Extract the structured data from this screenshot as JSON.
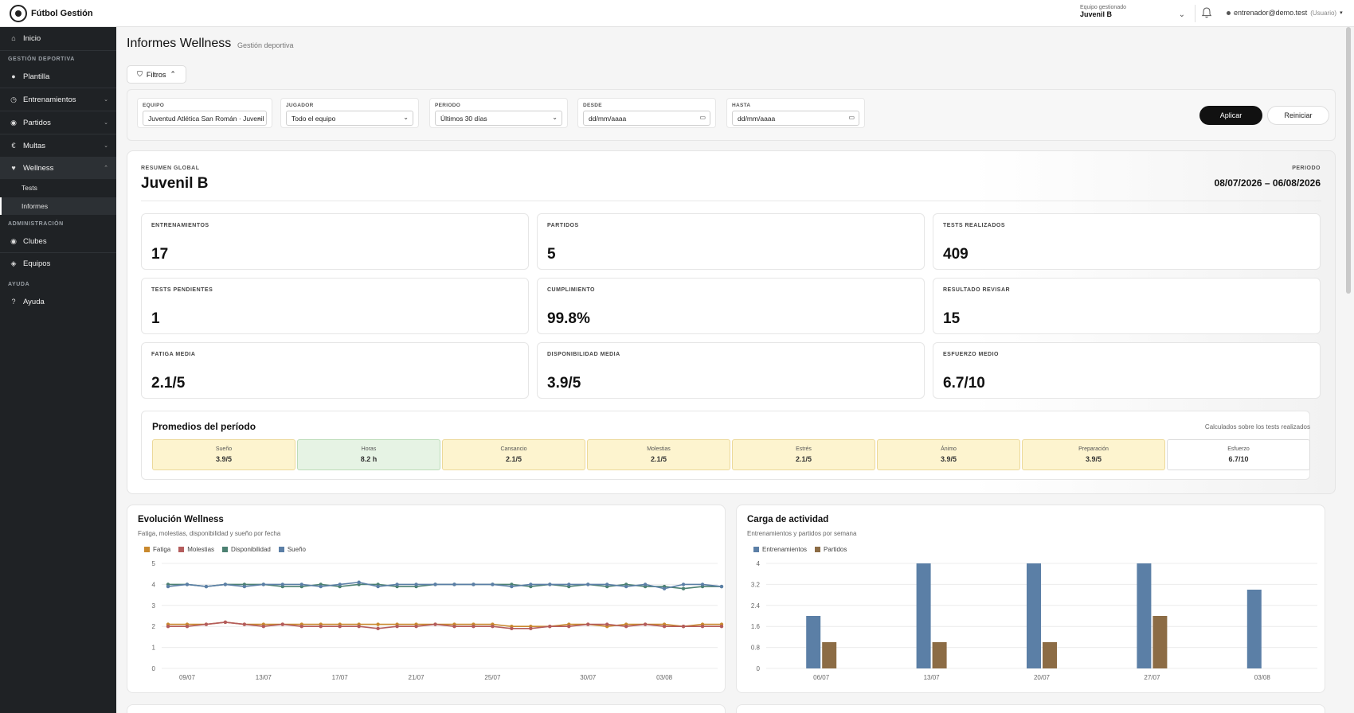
{
  "brand": {
    "name": "Fútbol Gestión"
  },
  "topbar": {
    "team_label": "Equipo gestionado",
    "team_value": "Juvenil B",
    "user_email": "entrenador@demo.test",
    "user_role": "(Usuario)"
  },
  "sidebar": {
    "home": "Inicio",
    "section_sport": "GESTIÓN DEPORTIVA",
    "plantilla": "Plantilla",
    "entrenamientos": "Entrenamientos",
    "partidos": "Partidos",
    "multas": "Multas",
    "wellness": "Wellness",
    "tests": "Tests",
    "informes": "Informes",
    "section_admin": "ADMINISTRACIÓN",
    "clubes": "Clubes",
    "equipos": "Equipos",
    "section_help": "AYUDA",
    "ayuda": "Ayuda"
  },
  "page": {
    "title": "Informes Wellness",
    "subtitle": "Gestión deportiva",
    "filters_button": "Filtros"
  },
  "filters": {
    "equipo_label": "EQUIPO",
    "equipo_value": "Juventud Atlética San Román · Juvenil B",
    "jugador_label": "JUGADOR",
    "jugador_value": "Todo el equipo",
    "periodo_label": "PERIODO",
    "periodo_value": "Últimos 30 días",
    "desde_label": "DESDE",
    "desde_placeholder": "dd/mm/aaaa",
    "hasta_label": "HASTA",
    "hasta_placeholder": "dd/mm/aaaa",
    "apply": "Aplicar",
    "reset": "Reiniciar"
  },
  "summary": {
    "label": "RESUMEN GLOBAL",
    "team": "Juvenil B",
    "period_label": "PERIODO",
    "period_value": "08/07/2026 – 06/08/2026",
    "kpis": [
      {
        "label": "ENTRENAMIENTOS",
        "value": "17"
      },
      {
        "label": "PARTIDOS",
        "value": "5"
      },
      {
        "label": "TESTS REALIZADOS",
        "value": "409"
      },
      {
        "label": "TESTS PENDIENTES",
        "value": "1"
      },
      {
        "label": "CUMPLIMIENTO",
        "value": "99.8%"
      },
      {
        "label": "RESULTADO REVISAR",
        "value": "15"
      },
      {
        "label": "FATIGA MEDIA",
        "value": "2.1/5"
      },
      {
        "label": "DISPONIBILIDAD MEDIA",
        "value": "3.9/5"
      },
      {
        "label": "ESFUERZO MEDIO",
        "value": "6.7/10"
      }
    ]
  },
  "averages": {
    "title": "Promedios del período",
    "note": "Calculados sobre los tests realizados",
    "items": [
      {
        "name": "Sueño",
        "value": "3.9/5",
        "tone": "yellow"
      },
      {
        "name": "Horas",
        "value": "8.2 h",
        "tone": "green"
      },
      {
        "name": "Cansancio",
        "value": "2.1/5",
        "tone": "yellow"
      },
      {
        "name": "Molestias",
        "value": "2.1/5",
        "tone": "yellow"
      },
      {
        "name": "Estrés",
        "value": "2.1/5",
        "tone": "yellow"
      },
      {
        "name": "Ánimo",
        "value": "3.9/5",
        "tone": "yellow"
      },
      {
        "name": "Preparación",
        "value": "3.9/5",
        "tone": "yellow"
      },
      {
        "name": "Esfuerzo",
        "value": "6.7/10",
        "tone": "white"
      }
    ]
  },
  "chart_data": [
    {
      "type": "line",
      "title": "Evolución Wellness",
      "subtitle": "Fatiga, molestias, disponibilidad y sueño por fecha",
      "ylim": [
        0,
        5
      ],
      "yticks": [
        0,
        1,
        2,
        3,
        4,
        5
      ],
      "x": [
        "08/07",
        "09/07",
        "10/07",
        "11/07",
        "12/07",
        "13/07",
        "14/07",
        "15/07",
        "16/07",
        "17/07",
        "18/07",
        "19/07",
        "20/07",
        "21/07",
        "22/07",
        "23/07",
        "24/07",
        "25/07",
        "26/07",
        "27/07",
        "28/07",
        "29/07",
        "30/07",
        "31/07",
        "01/08",
        "02/08",
        "03/08",
        "04/08",
        "05/08",
        "06/08"
      ],
      "xtick_labels": [
        "09/07",
        "13/07",
        "17/07",
        "21/07",
        "25/07",
        "30/07",
        "03/08"
      ],
      "series": [
        {
          "name": "Fatiga",
          "color": "#c9892e",
          "values": [
            2.1,
            2.1,
            2.1,
            2.2,
            2.1,
            2.1,
            2.1,
            2.1,
            2.1,
            2.1,
            2.1,
            2.1,
            2.1,
            2.1,
            2.1,
            2.1,
            2.1,
            2.1,
            2.0,
            2.0,
            2.0,
            2.1,
            2.1,
            2.0,
            2.1,
            2.1,
            2.1,
            2.0,
            2.1,
            2.1
          ]
        },
        {
          "name": "Molestias",
          "color": "#b45c5c",
          "values": [
            2.0,
            2.0,
            2.1,
            2.2,
            2.1,
            2.0,
            2.1,
            2.0,
            2.0,
            2.0,
            2.0,
            1.9,
            2.0,
            2.0,
            2.1,
            2.0,
            2.0,
            2.0,
            1.9,
            1.9,
            2.0,
            2.0,
            2.1,
            2.1,
            2.0,
            2.1,
            2.0,
            2.0,
            2.0,
            2.0
          ]
        },
        {
          "name": "Disponibilidad",
          "color": "#4c8172",
          "values": [
            4.0,
            4.0,
            3.9,
            4.0,
            4.0,
            4.0,
            3.9,
            3.9,
            4.0,
            3.9,
            4.0,
            4.0,
            3.9,
            3.9,
            4.0,
            4.0,
            4.0,
            4.0,
            4.0,
            3.9,
            4.0,
            3.9,
            4.0,
            3.9,
            4.0,
            3.9,
            3.9,
            3.8,
            3.9,
            3.9
          ]
        },
        {
          "name": "Sueño",
          "color": "#5b7fa6",
          "values": [
            3.9,
            4.0,
            3.9,
            4.0,
            3.9,
            4.0,
            4.0,
            4.0,
            3.9,
            4.0,
            4.1,
            3.9,
            4.0,
            4.0,
            4.0,
            4.0,
            4.0,
            4.0,
            3.9,
            4.0,
            4.0,
            4.0,
            4.0,
            4.0,
            3.9,
            4.0,
            3.8,
            4.0,
            4.0,
            3.9
          ]
        }
      ]
    },
    {
      "type": "bar",
      "title": "Carga de actividad",
      "subtitle": "Entrenamientos y partidos por semana",
      "ylim": [
        0,
        4
      ],
      "yticks": [
        0,
        0.8,
        1.6,
        2.4,
        3.2,
        4
      ],
      "categories": [
        "06/07",
        "13/07",
        "20/07",
        "27/07",
        "03/08"
      ],
      "series": [
        {
          "name": "Entrenamientos",
          "color": "#5b7fa6",
          "values": [
            2,
            4,
            4,
            4,
            3
          ]
        },
        {
          "name": "Partidos",
          "color": "#8c6c45",
          "values": [
            1,
            1,
            1,
            2,
            0
          ]
        }
      ]
    }
  ]
}
